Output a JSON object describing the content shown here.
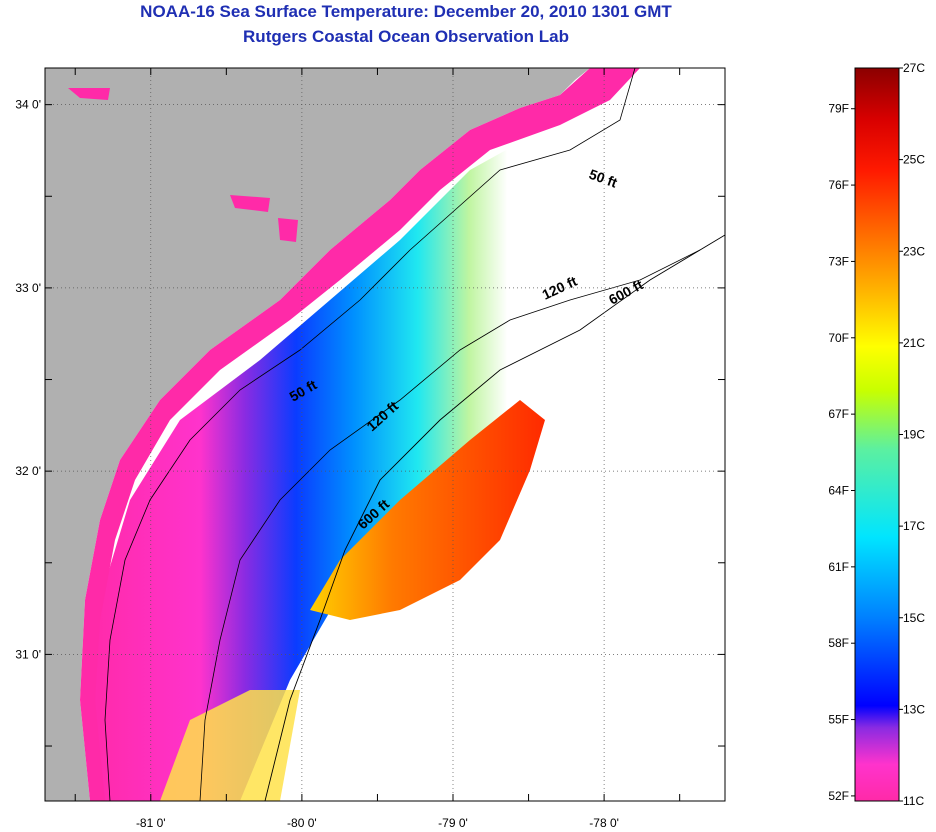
{
  "header": {
    "title": "NOAA-16 Sea Surface Temperature:  December 20, 2010 1301 GMT",
    "subtitle": "Rutgers Coastal Ocean Observation Lab"
  },
  "map": {
    "lon_range": [
      -81.7,
      -77.2
    ],
    "lat_range": [
      30.2,
      34.2
    ],
    "lon_ticks": [
      {
        "value": -81,
        "label": "-81 0'"
      },
      {
        "value": -80,
        "label": "-80 0'"
      },
      {
        "value": -79,
        "label": "-79 0'"
      },
      {
        "value": -78,
        "label": "-78 0'"
      }
    ],
    "lat_ticks": [
      {
        "value": 34,
        "label": "34 0'"
      },
      {
        "value": 33,
        "label": "33 0'"
      },
      {
        "value": 32,
        "label": "32 0'"
      },
      {
        "value": 31,
        "label": "31 0'"
      }
    ],
    "contour_labels": [
      "50 ft",
      "120 ft",
      "600 ft",
      "50 ft",
      "120 ft",
      "600 ft"
    ],
    "land_color": "#b0b0b0"
  },
  "colorbar": {
    "celsius_labels": [
      "27C",
      "25C",
      "23C",
      "21C",
      "19C",
      "17C",
      "15C",
      "13C",
      "11C"
    ],
    "fahrenheit_labels": [
      "79F",
      "76F",
      "73F",
      "70F",
      "67F",
      "64F",
      "61F",
      "58F",
      "55F",
      "52F"
    ],
    "colors": [
      "#ff2aa8",
      "#ff33cc",
      "#8a2be2",
      "#0000ff",
      "#0080ff",
      "#00e5ff",
      "#5cf0a0",
      "#c8ff00",
      "#ffff00",
      "#ffb000",
      "#ff6600",
      "#ff1a00",
      "#d80000",
      "#8b0000"
    ]
  }
}
